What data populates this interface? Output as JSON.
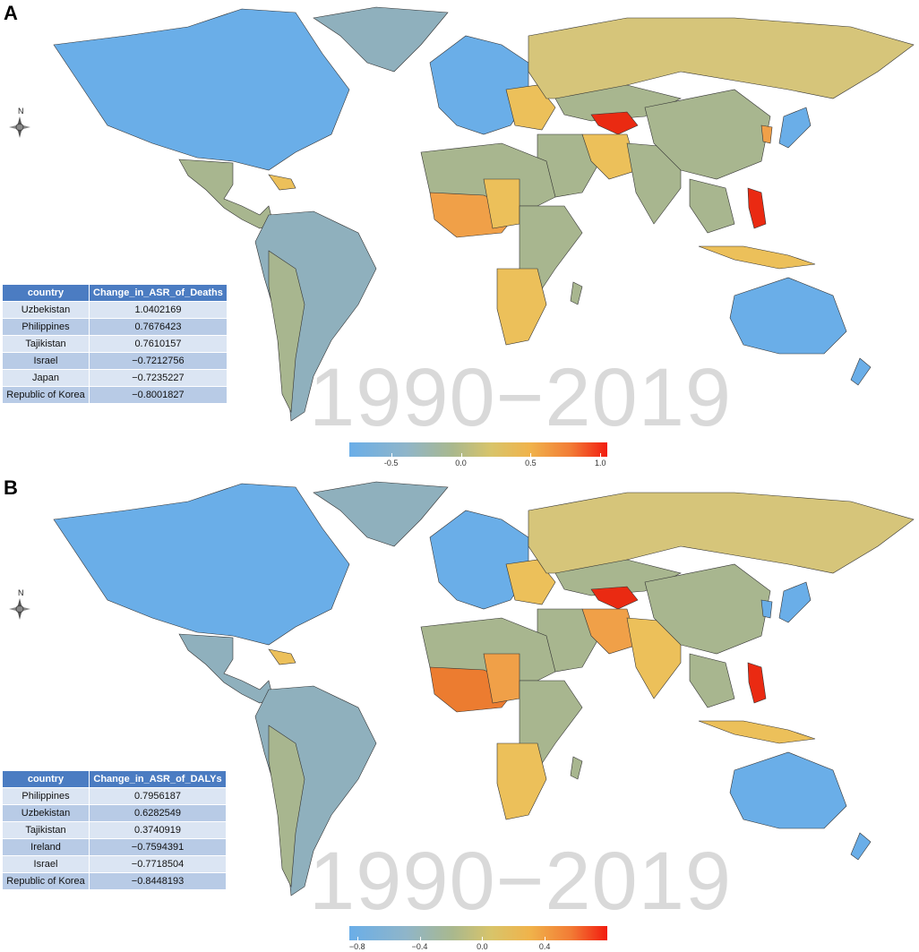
{
  "panels": [
    {
      "label": "A",
      "table": {
        "headers": [
          "country",
          "Change_in_ASR_of_Deaths"
        ],
        "rows": [
          [
            "Uzbekistan",
            "1.0402169"
          ],
          [
            "Philippines",
            "0.7676423"
          ],
          [
            "Tajikistan",
            "0.7610157"
          ],
          [
            "Israel",
            "−0.7212756"
          ],
          [
            "Japan",
            "−0.7235227"
          ],
          [
            "Republic of Korea",
            "−0.8001827"
          ]
        ]
      },
      "watermark": "1990−2019",
      "legend": {
        "min": -0.8,
        "max": 1.05,
        "ticks": [
          "-0.5",
          "0.0",
          "0.5",
          "1.0"
        ],
        "tick_values": [
          -0.5,
          0.0,
          0.5,
          1.0
        ]
      }
    },
    {
      "label": "B",
      "table": {
        "headers": [
          "country",
          "Change_in_ASR_of_DALYs"
        ],
        "rows": [
          [
            "Philippines",
            "0.7956187"
          ],
          [
            "Uzbekistan",
            "0.6282549"
          ],
          [
            "Tajikistan",
            "0.3740919"
          ],
          [
            "Ireland",
            "−0.7594391"
          ],
          [
            "Israel",
            "−0.7718504"
          ],
          [
            "Republic of Korea",
            "−0.8448193"
          ]
        ]
      },
      "watermark": "1990−2019",
      "legend": {
        "min": -0.85,
        "max": 0.8,
        "ticks": [
          "−0.8",
          "−0.4",
          "0.0",
          "0.4"
        ],
        "tick_values": [
          -0.8,
          -0.4,
          0.0,
          0.4
        ]
      }
    }
  ],
  "compass_label": "N",
  "colors": {
    "blue": "#6aaee8",
    "blue_gray": "#8fb0bd",
    "gray_green": "#a8b68f",
    "khaki": "#d6c57a",
    "yellow": "#ecc05a",
    "orange": "#f0a048",
    "dark_orange": "#ec7c30",
    "red": "#ea2a12"
  }
}
